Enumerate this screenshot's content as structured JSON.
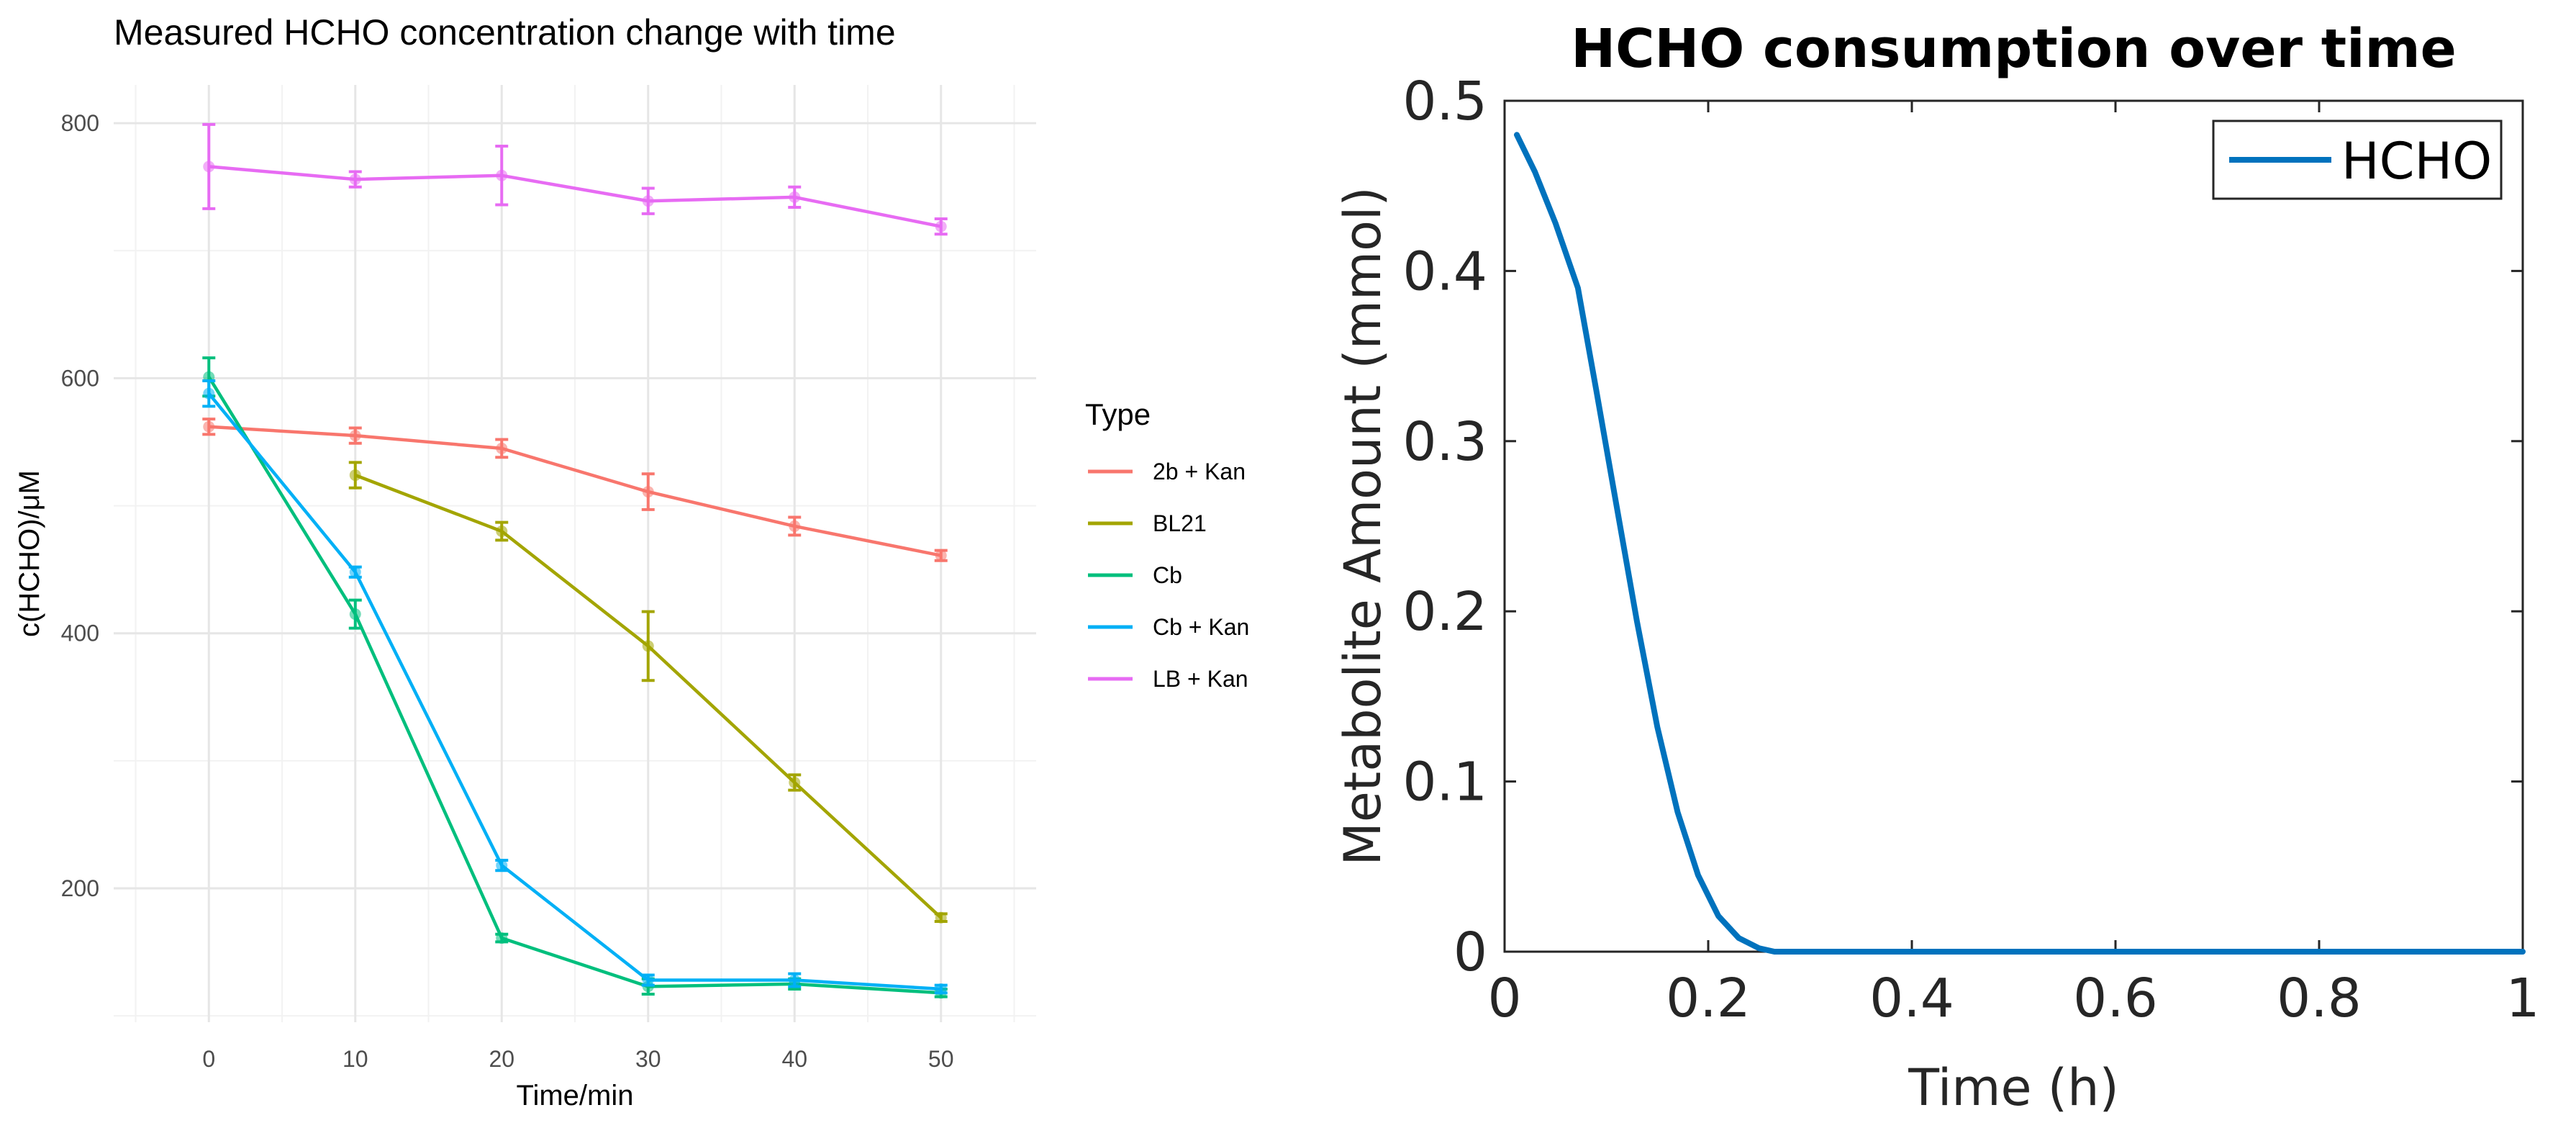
{
  "chart_data": [
    {
      "type": "line",
      "title": "Measured HCHO concentration change with time",
      "xlabel": "Time/min",
      "ylabel": "c(HCHO)/μM",
      "xlim": [
        -6.5,
        56.5
      ],
      "ylim": [
        95,
        830
      ],
      "x_ticks": [
        "0",
        "10",
        "20",
        "30",
        "40",
        "50"
      ],
      "y_ticks": [
        "200",
        "400",
        "600",
        "800"
      ],
      "grid": true,
      "error_bars": true,
      "legend": {
        "title": "Type",
        "position": "right"
      },
      "series": [
        {
          "name": "2b + Kan",
          "color": "#F8766D",
          "points": [
            {
              "x": 0,
              "y": 562,
              "err": 6
            },
            {
              "x": 10,
              "y": 555,
              "err": 6
            },
            {
              "x": 20,
              "y": 545,
              "err": 7
            },
            {
              "x": 30,
              "y": 511,
              "err": 14
            },
            {
              "x": 40,
              "y": 484,
              "err": 7
            },
            {
              "x": 50,
              "y": 461,
              "err": 4
            }
          ]
        },
        {
          "name": "BL21",
          "color": "#A3A500",
          "points": [
            {
              "x": 10,
              "y": 524,
              "err": 10
            },
            {
              "x": 20,
              "y": 480,
              "err": 7
            },
            {
              "x": 30,
              "y": 390,
              "err": 27
            },
            {
              "x": 40,
              "y": 283,
              "err": 6
            },
            {
              "x": 50,
              "y": 177,
              "err": 3
            }
          ]
        },
        {
          "name": "Cb",
          "color": "#00BF7D",
          "points": [
            {
              "x": 0,
              "y": 601,
              "err": 15
            },
            {
              "x": 10,
              "y": 415,
              "err": 11
            },
            {
              "x": 20,
              "y": 161,
              "err": 3
            },
            {
              "x": 30,
              "y": 123,
              "err": 6
            },
            {
              "x": 40,
              "y": 125,
              "err": 4
            },
            {
              "x": 50,
              "y": 118,
              "err": 3
            }
          ]
        },
        {
          "name": "Cb + Kan",
          "color": "#00B0F6",
          "points": [
            {
              "x": 0,
              "y": 588,
              "err": 10
            },
            {
              "x": 10,
              "y": 448,
              "err": 4
            },
            {
              "x": 20,
              "y": 218,
              "err": 4
            },
            {
              "x": 30,
              "y": 128,
              "err": 4
            },
            {
              "x": 40,
              "y": 128,
              "err": 5
            },
            {
              "x": 50,
              "y": 121,
              "err": 3
            }
          ]
        },
        {
          "name": "LB + Kan",
          "color": "#E76BF3",
          "points": [
            {
              "x": 0,
              "y": 766,
              "err": 33
            },
            {
              "x": 10,
              "y": 756,
              "err": 6
            },
            {
              "x": 20,
              "y": 759,
              "err": 23
            },
            {
              "x": 30,
              "y": 739,
              "err": 10
            },
            {
              "x": 40,
              "y": 742,
              "err": 8
            },
            {
              "x": 50,
              "y": 719,
              "err": 6
            }
          ]
        }
      ]
    },
    {
      "type": "line",
      "title": "HCHO consumption over time",
      "xlabel": "Time (h)",
      "ylabel": "Metabolite Amount (mmol)",
      "xlim": [
        0,
        1
      ],
      "ylim": [
        0,
        0.5
      ],
      "x_ticks": [
        "0",
        "0.2",
        "0.4",
        "0.6",
        "0.8",
        "1"
      ],
      "y_ticks": [
        "0",
        "0.1",
        "0.2",
        "0.3",
        "0.4",
        "0.5"
      ],
      "grid": false,
      "legend": {
        "position": "top-right"
      },
      "series": [
        {
          "name": "HCHO",
          "color": "#0072BD",
          "points": [
            {
              "x": 0.012,
              "y": 0.48
            },
            {
              "x": 0.03,
              "y": 0.458
            },
            {
              "x": 0.05,
              "y": 0.428
            },
            {
              "x": 0.072,
              "y": 0.39
            },
            {
              "x": 0.09,
              "y": 0.33
            },
            {
              "x": 0.11,
              "y": 0.262
            },
            {
              "x": 0.13,
              "y": 0.194
            },
            {
              "x": 0.15,
              "y": 0.132
            },
            {
              "x": 0.17,
              "y": 0.082
            },
            {
              "x": 0.19,
              "y": 0.045
            },
            {
              "x": 0.21,
              "y": 0.021
            },
            {
              "x": 0.23,
              "y": 0.008
            },
            {
              "x": 0.25,
              "y": 0.002
            },
            {
              "x": 0.265,
              "y": 0.0
            },
            {
              "x": 0.4,
              "y": 0.0
            },
            {
              "x": 0.6,
              "y": 0.0
            },
            {
              "x": 0.8,
              "y": 0.0
            },
            {
              "x": 1.0,
              "y": 0.0
            }
          ]
        }
      ]
    }
  ]
}
